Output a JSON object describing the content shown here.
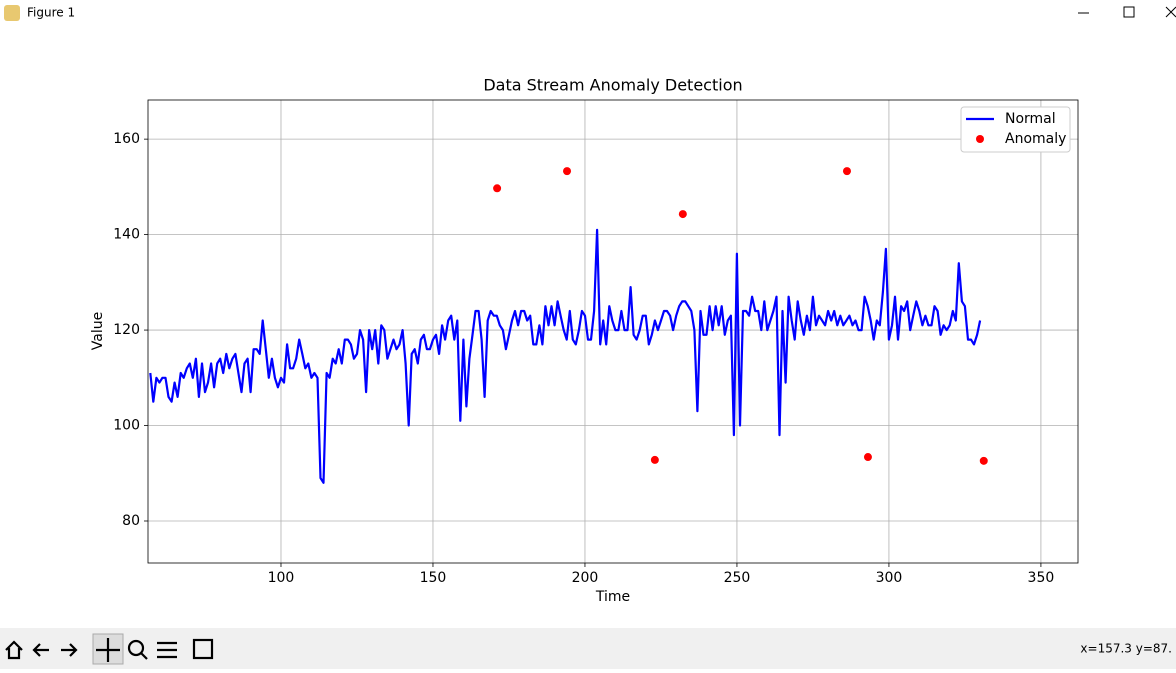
{
  "window": {
    "title": "Figure 1"
  },
  "status": "x=157.3 y=87.",
  "chart_data": {
    "type": "line",
    "title": "Data Stream Anomaly Detection",
    "x_label": "Time",
    "y_label": "Value",
    "xlim": [
      56.25,
      362.2
    ],
    "ylim": [
      71.2,
      168.2
    ],
    "xticks": [
      100,
      150,
      200,
      250,
      300,
      350
    ],
    "yticks": [
      80,
      100,
      120,
      140,
      160
    ],
    "grid": true,
    "legend": "upper right",
    "series": [
      {
        "name": "Normal",
        "type": "line",
        "color": "#0000ff",
        "x": [
          57,
          58,
          59,
          60,
          61,
          62,
          63,
          64,
          65,
          66,
          67,
          68,
          69,
          70,
          71,
          72,
          73,
          74,
          75,
          76,
          77,
          78,
          79,
          80,
          81,
          82,
          83,
          84,
          85,
          86,
          87,
          88,
          89,
          90,
          91,
          92,
          93,
          94,
          95,
          96,
          97,
          98,
          99,
          100,
          101,
          102,
          103,
          104,
          105,
          106,
          107,
          108,
          109,
          110,
          111,
          112,
          113,
          114,
          115,
          116,
          117,
          118,
          119,
          120,
          121,
          122,
          123,
          124,
          125,
          126,
          127,
          128,
          129,
          130,
          131,
          132,
          133,
          134,
          135,
          136,
          137,
          138,
          139,
          140,
          141,
          142,
          143,
          144,
          145,
          146,
          147,
          148,
          149,
          150,
          151,
          152,
          153,
          154,
          155,
          156,
          157,
          158,
          159,
          160,
          161,
          162,
          163,
          164,
          165,
          166,
          167,
          168,
          169,
          170,
          171,
          172,
          173,
          174,
          175,
          176,
          177,
          178,
          179,
          180,
          181,
          182,
          183,
          184,
          185,
          186,
          187,
          188,
          189,
          190,
          191,
          192,
          193,
          194,
          195,
          196,
          197,
          198,
          199,
          200,
          201,
          202,
          203,
          204,
          205,
          206,
          207,
          208,
          209,
          210,
          211,
          212,
          213,
          214,
          215,
          216,
          217,
          218,
          219,
          220,
          221,
          222,
          223,
          224,
          225,
          226,
          227,
          228,
          229,
          230,
          231,
          232,
          233,
          234,
          235,
          236,
          237,
          238,
          239,
          240,
          241,
          242,
          243,
          244,
          245,
          246,
          247,
          248,
          249,
          250,
          251,
          252,
          253,
          254,
          255,
          256,
          257,
          258,
          259,
          260,
          261,
          262,
          263,
          264,
          265,
          266,
          267,
          268,
          269,
          270,
          271,
          272,
          273,
          274,
          275,
          276,
          277,
          278,
          279,
          280,
          281,
          282,
          283,
          284,
          285,
          286,
          287,
          288,
          289,
          290,
          291,
          292,
          293,
          294,
          295,
          296,
          297,
          298,
          299,
          300,
          301,
          302,
          303,
          304,
          305,
          306,
          307,
          308,
          309,
          310,
          311,
          312,
          313,
          314,
          315,
          316,
          317,
          318,
          319,
          320,
          321,
          322,
          323,
          324,
          325,
          326,
          327,
          328,
          329,
          330
        ],
        "values": [
          111,
          105,
          110,
          109,
          110,
          110,
          106,
          105,
          109,
          106,
          111,
          110,
          112,
          113,
          110,
          114,
          106,
          113,
          107,
          109,
          113,
          108,
          113,
          114,
          111,
          115,
          112,
          114,
          115,
          111,
          107,
          113,
          114,
          107,
          116,
          116,
          115,
          122,
          116,
          110,
          114,
          110,
          108,
          110,
          109,
          117,
          112,
          112,
          114,
          118,
          115,
          112,
          113,
          110,
          111,
          110,
          89,
          88,
          111,
          110,
          114,
          113,
          116,
          113,
          118,
          118,
          117,
          114,
          115,
          120,
          118,
          107,
          120,
          116,
          120,
          113,
          121,
          120,
          114,
          116,
          118,
          116,
          117,
          120,
          113,
          100,
          115,
          116,
          113,
          118,
          119,
          116,
          116,
          118,
          119,
          115,
          121,
          118,
          122,
          123,
          118,
          122,
          101,
          118,
          104,
          114,
          119,
          124,
          124,
          118,
          106,
          122,
          124,
          123,
          123,
          121,
          120,
          116,
          119,
          122,
          124,
          121,
          124,
          124,
          122,
          123,
          117,
          117,
          121,
          117,
          125,
          121,
          125,
          121,
          126,
          123,
          120,
          118,
          124,
          118,
          117,
          120,
          124,
          123,
          118,
          118,
          124,
          141,
          117,
          122,
          117,
          125,
          122,
          120,
          120,
          124,
          120,
          120,
          129,
          119,
          118,
          120,
          123,
          123,
          117,
          119,
          122,
          120,
          122,
          124,
          124,
          123,
          120,
          123,
          125,
          126,
          126,
          125,
          124,
          120,
          103,
          124,
          119,
          119,
          125,
          120,
          125,
          121,
          125,
          119,
          122,
          123,
          98,
          136,
          100,
          124,
          124,
          123,
          127,
          124,
          124,
          120,
          126,
          120,
          122,
          124,
          127,
          98,
          124,
          109,
          127,
          122,
          118,
          126,
          122,
          119,
          123,
          120,
          127,
          121,
          123,
          122,
          121,
          124,
          122,
          124,
          121,
          123,
          121,
          122,
          123,
          121,
          122,
          120,
          120,
          127,
          125,
          122,
          118,
          122,
          121,
          128,
          137,
          118,
          121,
          127,
          118,
          125,
          124,
          126,
          120,
          123,
          126,
          124,
          121,
          123,
          121,
          121,
          125,
          124,
          119,
          121,
          120,
          121,
          124,
          122,
          134,
          126,
          125,
          118,
          118,
          117,
          119,
          122
        ]
      },
      {
        "name": "Anomaly",
        "type": "scatter",
        "color": "#ff0000",
        "x": [
          171.1,
          194.1,
          223.0,
          232.2,
          286.2,
          293.1,
          331.2
        ],
        "values": [
          149.7,
          153.3,
          92.8,
          144.3,
          153.3,
          93.4,
          92.6
        ]
      }
    ]
  }
}
